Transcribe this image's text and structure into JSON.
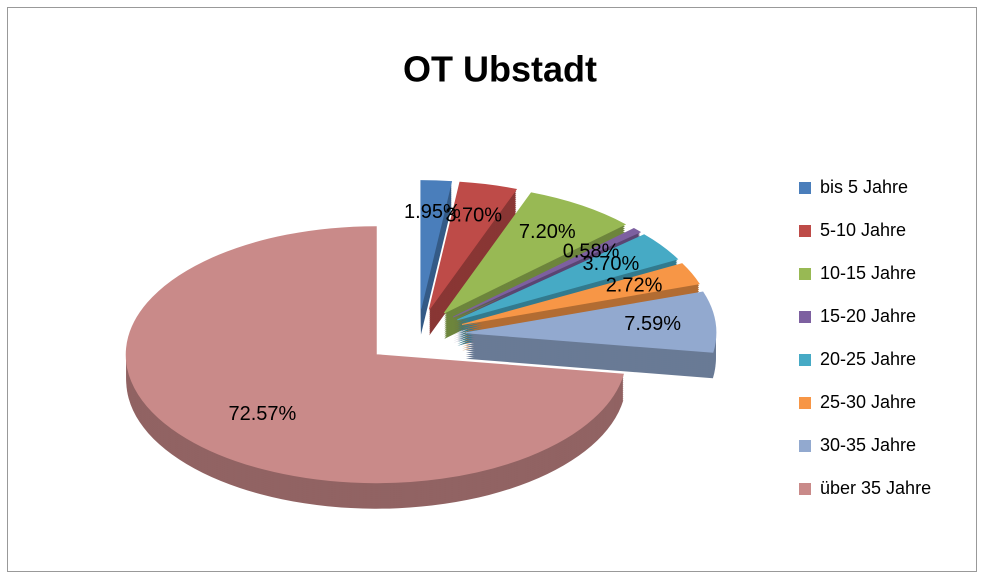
{
  "chart_data": {
    "type": "pie",
    "title": "OT Ubstadt",
    "categories": [
      "bis 5 Jahre",
      "5-10 Jahre",
      "10-15 Jahre",
      "15-20 Jahre",
      "20-25 Jahre",
      "25-30 Jahre",
      "30-35 Jahre",
      "über 35 Jahre"
    ],
    "values": [
      1.95,
      3.7,
      7.2,
      0.58,
      3.7,
      2.72,
      7.59,
      72.57
    ],
    "value_labels": [
      "1.95%",
      "3.70%",
      "7.20%",
      "0.58%",
      "3.70%",
      "2.72%",
      "7.59%",
      "72.57%"
    ],
    "colors": [
      "#4a7ebb",
      "#be4b48",
      "#98b954",
      "#7d60a0",
      "#46aac5",
      "#f79646",
      "#92a9cf",
      "#c98a89"
    ],
    "legend": "right"
  }
}
